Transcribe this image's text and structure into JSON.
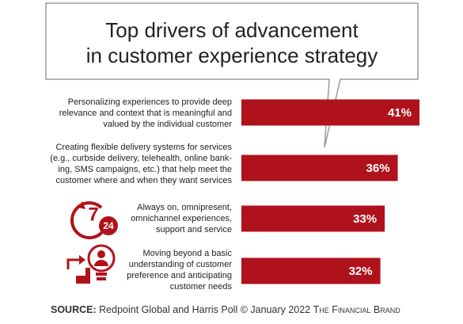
{
  "chart_data": {
    "type": "bar",
    "title": [
      "Top drivers of advancement",
      "in customer experience strategy"
    ],
    "categories": [
      [
        "Personalizing experiences to provide deep",
        "relevance and context that is meaningful and",
        "valued by the individual customer"
      ],
      [
        "Creating flexible delivery systems for services",
        "(e.g., curbside delivery, telehealth, online bank-",
        "ing, SMS campaigns, etc.) that help meet the",
        "customer where and when they want services"
      ],
      [
        "Always on, omnipresent,",
        "omnichannel experiences,",
        "support and service"
      ],
      [
        "Moving beyond a basic",
        "understanding of customer",
        "preference and anticipating",
        "customer needs"
      ]
    ],
    "values": [
      41,
      36,
      33,
      32
    ],
    "value_labels": [
      "41%",
      "36%",
      "33%",
      "32%"
    ],
    "color": "#b0121b",
    "xlim": [
      0,
      41
    ],
    "icon_text": [
      "7",
      "24"
    ],
    "source_label": "SOURCE:",
    "source": "Redpoint Global and Harris Poll © January 2022",
    "brand": "The Financial Brand"
  }
}
